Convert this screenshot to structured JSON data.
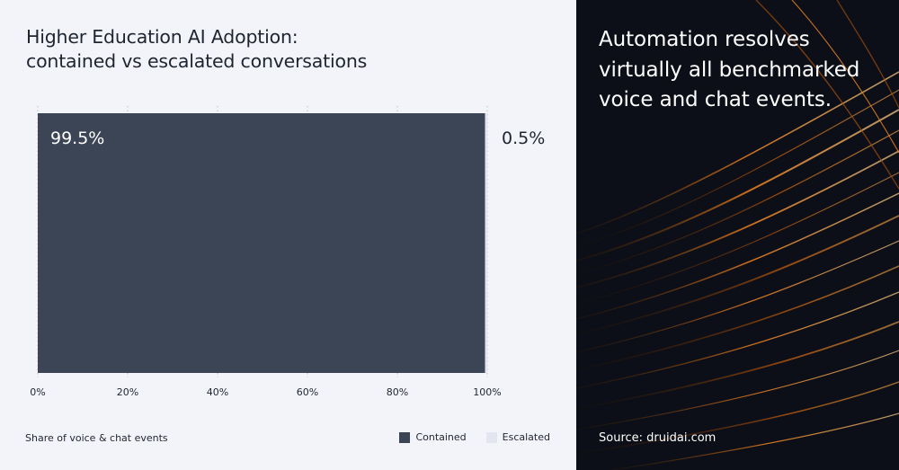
{
  "chart_data": {
    "type": "bar",
    "orientation": "horizontal-stacked",
    "title_lines": [
      "Higher Education AI Adoption:",
      "contained vs escalated conversations"
    ],
    "categories": [
      ""
    ],
    "series": [
      {
        "name": "Contained",
        "values": [
          99.5
        ],
        "color": "#3b4556",
        "label": "99.5%"
      },
      {
        "name": "Escalated",
        "values": [
          0.5
        ],
        "color": "#e4e6ef",
        "label": "0.5%"
      }
    ],
    "xlim": [
      0,
      100
    ],
    "xticks": [
      "0%",
      "20%",
      "40%",
      "60%",
      "80%",
      "100%"
    ],
    "xlabel": "Share of voice & chat events",
    "ylabel": "",
    "grid": "vertical dotted",
    "legend_position": "bottom-right"
  },
  "panel": {
    "headline": "Automation resolves virtually all benchmarked voice and chat events.",
    "source": "Source: druidai.com"
  },
  "colors": {
    "left_background": "#f3f4f9",
    "right_background": "#0c0f17",
    "accent_orange": "#e07a1f"
  }
}
